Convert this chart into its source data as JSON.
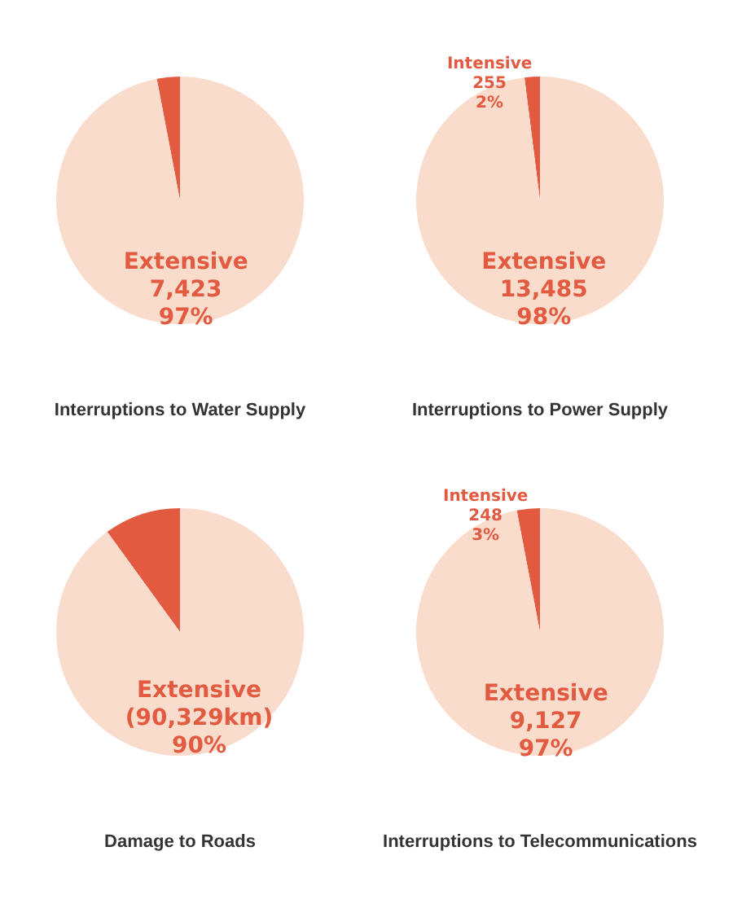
{
  "chart_data": [
    {
      "type": "pie",
      "title": "Interruptions to Water Supply",
      "categories": [
        null,
        "Extensive"
      ],
      "values": [
        3,
        97
      ],
      "value_labels": [
        null,
        "7,423\n97%"
      ],
      "colors": [
        "#e25a40",
        "#f9dccb"
      ]
    },
    {
      "type": "pie",
      "title": "Interruptions to Power Supply",
      "categories": [
        "Intensive",
        "Extensive"
      ],
      "values": [
        2,
        98
      ],
      "value_labels": [
        "255\n2%",
        "13,485\n98%"
      ],
      "colors": [
        "#e25a40",
        "#f9dccb"
      ]
    },
    {
      "type": "pie",
      "title": "Damage to Roads",
      "categories": [
        null,
        "Extensive"
      ],
      "values": [
        10,
        90
      ],
      "value_labels": [
        null,
        "(90,329km)\n90%"
      ],
      "colors": [
        "#e25a40",
        "#f9dccb"
      ]
    },
    {
      "type": "pie",
      "title": "Interruptions to Telecommunications",
      "categories": [
        "Intensive",
        "Extensive"
      ],
      "values": [
        3,
        97
      ],
      "value_labels": [
        "248\n3%",
        "9,127\n97%"
      ],
      "colors": [
        "#e25a40",
        "#f9dccb"
      ]
    }
  ]
}
